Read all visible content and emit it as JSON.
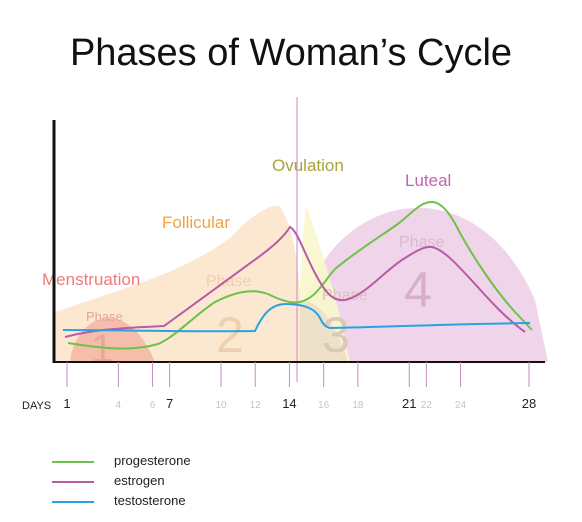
{
  "title": "Phases of Woman’s Cycle",
  "phases": [
    {
      "label": "Menstruation",
      "word": "Phase",
      "number": "1",
      "color": "#ee7b79"
    },
    {
      "label": "Follicular",
      "word": "Phase",
      "number": "2",
      "color": "#f0a340"
    },
    {
      "label": "Ovulation",
      "word": "Phase",
      "number": "3",
      "color": "#a7a43a"
    },
    {
      "label": "Luteal",
      "word": "Phase",
      "number": "4",
      "color": "#c164b0"
    }
  ],
  "axis": {
    "x_label": "DAYS",
    "ticks": [
      {
        "day": 1,
        "label": "1",
        "major": true
      },
      {
        "day": 4,
        "label": "4",
        "major": false
      },
      {
        "day": 6,
        "label": "6",
        "major": false
      },
      {
        "day": 7,
        "label": "7",
        "major": true
      },
      {
        "day": 10,
        "label": "10",
        "major": false
      },
      {
        "day": 12,
        "label": "12",
        "major": false
      },
      {
        "day": 14,
        "label": "14",
        "major": true
      },
      {
        "day": 16,
        "label": "16",
        "major": false
      },
      {
        "day": 18,
        "label": "18",
        "major": false
      },
      {
        "day": 21,
        "label": "21",
        "major": true
      },
      {
        "day": 22,
        "label": "22",
        "major": false
      },
      {
        "day": 24,
        "label": "24",
        "major": false
      },
      {
        "day": 28,
        "label": "28",
        "major": true
      }
    ],
    "ovulation_day": 14
  },
  "series": [
    {
      "name": "progesterone",
      "color": "#6cc24a"
    },
    {
      "name": "estrogen",
      "color": "#b85aa6"
    },
    {
      "name": "testosterone",
      "color": "#27a4dd"
    }
  ],
  "legend": {
    "items": [
      {
        "label": "progesterone",
        "color": "#6cc24a"
      },
      {
        "label": "estrogen",
        "color": "#b85aa6"
      },
      {
        "label": "testosterone",
        "color": "#27a4dd"
      }
    ]
  }
}
